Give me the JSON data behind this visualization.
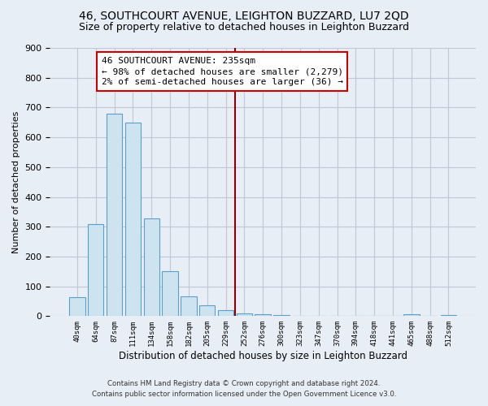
{
  "title": "46, SOUTHCOURT AVENUE, LEIGHTON BUZZARD, LU7 2QD",
  "subtitle": "Size of property relative to detached houses in Leighton Buzzard",
  "xlabel": "Distribution of detached houses by size in Leighton Buzzard",
  "ylabel": "Number of detached properties",
  "footer_line1": "Contains HM Land Registry data © Crown copyright and database right 2024.",
  "footer_line2": "Contains public sector information licensed under the Open Government Licence v3.0.",
  "bar_labels": [
    "40sqm",
    "64sqm",
    "87sqm",
    "111sqm",
    "134sqm",
    "158sqm",
    "182sqm",
    "205sqm",
    "229sqm",
    "252sqm",
    "276sqm",
    "300sqm",
    "323sqm",
    "347sqm",
    "370sqm",
    "394sqm",
    "418sqm",
    "441sqm",
    "465sqm",
    "488sqm",
    "512sqm"
  ],
  "bar_values": [
    63,
    310,
    680,
    650,
    328,
    152,
    65,
    35,
    20,
    10,
    5,
    3,
    2,
    1,
    0,
    0,
    0,
    0,
    5,
    0,
    3
  ],
  "bar_color": "#cde4f0",
  "bar_edge_color": "#5a9ec9",
  "vline_x": 8.5,
  "vline_color": "#8b0000",
  "annotation_title": "46 SOUTHCOURT AVENUE: 235sqm",
  "annotation_line1": "← 98% of detached houses are smaller (2,279)",
  "annotation_line2": "2% of semi-detached houses are larger (36) →",
  "annotation_box_color": "white",
  "annotation_box_edge": "#cc0000",
  "ylim": [
    0,
    900
  ],
  "yticks": [
    0,
    100,
    200,
    300,
    400,
    500,
    600,
    700,
    800,
    900
  ],
  "plot_bg_color": "#e8eef5",
  "fig_bg_color": "#e8eef5",
  "grid_color": "#c0c8d8",
  "title_fontsize": 10,
  "subtitle_fontsize": 9
}
